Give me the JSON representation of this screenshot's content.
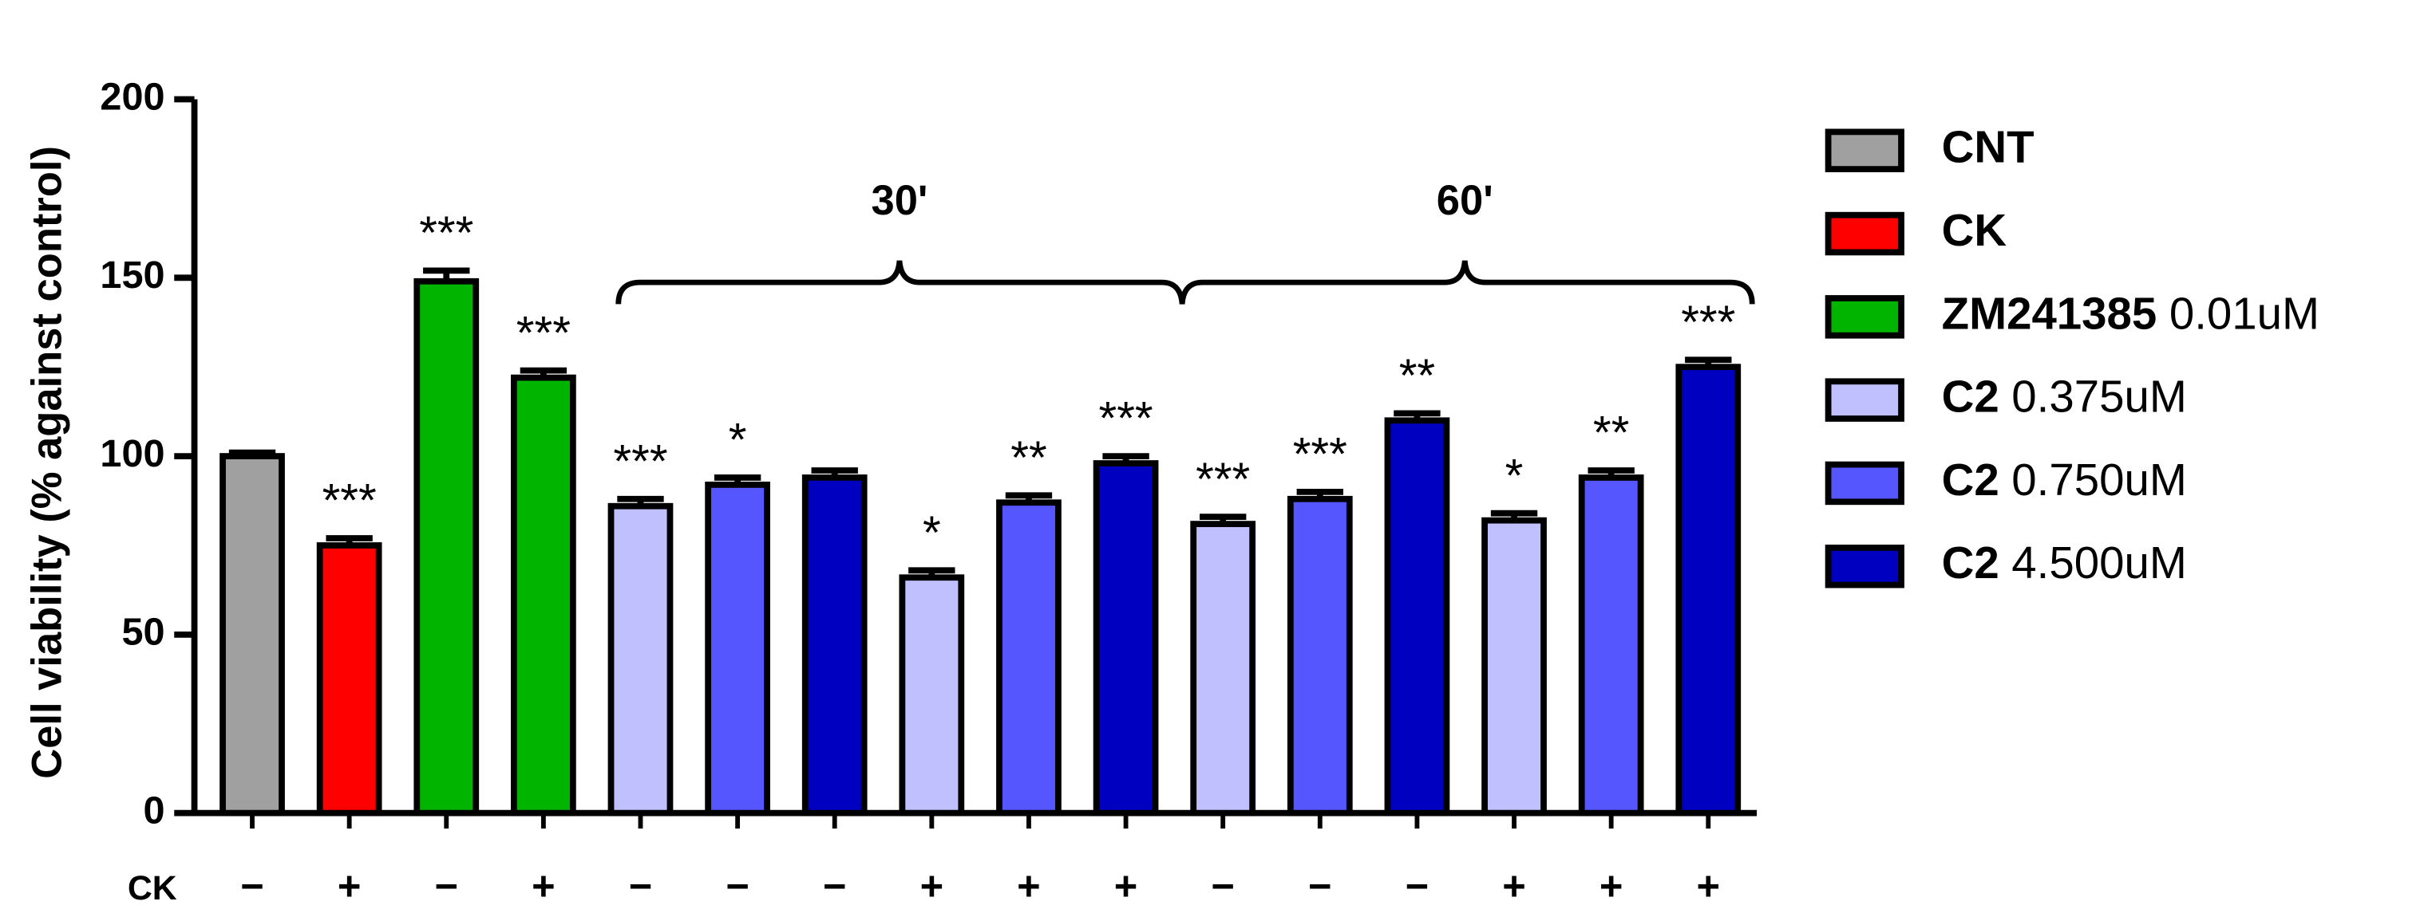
{
  "chart_data": {
    "type": "bar",
    "y_label": "Cell viability (% against control)",
    "x_row_label": "CK",
    "categories": [
      "−",
      "+",
      "−",
      "+",
      "−",
      "−",
      "−",
      "+",
      "+",
      "+",
      "−",
      "−",
      "−",
      "+",
      "+",
      "+"
    ],
    "values": [
      100,
      75,
      149,
      122,
      86,
      92,
      94,
      66,
      87,
      98,
      81,
      88,
      110,
      82,
      94,
      125
    ],
    "errors": [
      1,
      2,
      3,
      2,
      2,
      2,
      2,
      2,
      2,
      2,
      2,
      2,
      2,
      2,
      2,
      2
    ],
    "bar_series": [
      0,
      1,
      2,
      2,
      3,
      4,
      5,
      3,
      4,
      5,
      3,
      4,
      5,
      3,
      4,
      5
    ],
    "series": [
      {
        "name": "CNT",
        "color": "#a0a0a0"
      },
      {
        "name": "CK",
        "color": "#ff0000"
      },
      {
        "name": "ZM241385",
        "dose": "0.01uM",
        "color": "#00b400"
      },
      {
        "name": "C2",
        "dose": "0.375uM",
        "color": "#c0c0ff"
      },
      {
        "name": "C2",
        "dose": "0.750uM",
        "color": "#5656ff"
      },
      {
        "name": "C2",
        "dose": "4.500uM",
        "color": "#0000c0"
      }
    ],
    "significance": [
      null,
      "***",
      "***",
      "***",
      "***",
      "*",
      null,
      "*",
      "**",
      "***",
      "***",
      "***",
      "**",
      "*",
      "**",
      "***"
    ],
    "significance_colors": [
      null,
      "#ff0000",
      "#ff0000",
      "#00ee00",
      "#ff0000",
      "#ff0000",
      null,
      "#00ee00",
      "#00ee00",
      "#00ee00",
      "#ff0000",
      "#ff0000",
      "#ff0000",
      "#00ee00",
      "#00ee00",
      "#00ee00"
    ],
    "annotations": [
      "30'",
      "60'"
    ],
    "ylim": [
      0,
      200
    ],
    "yticks": [
      0,
      50,
      100,
      150,
      200
    ]
  }
}
